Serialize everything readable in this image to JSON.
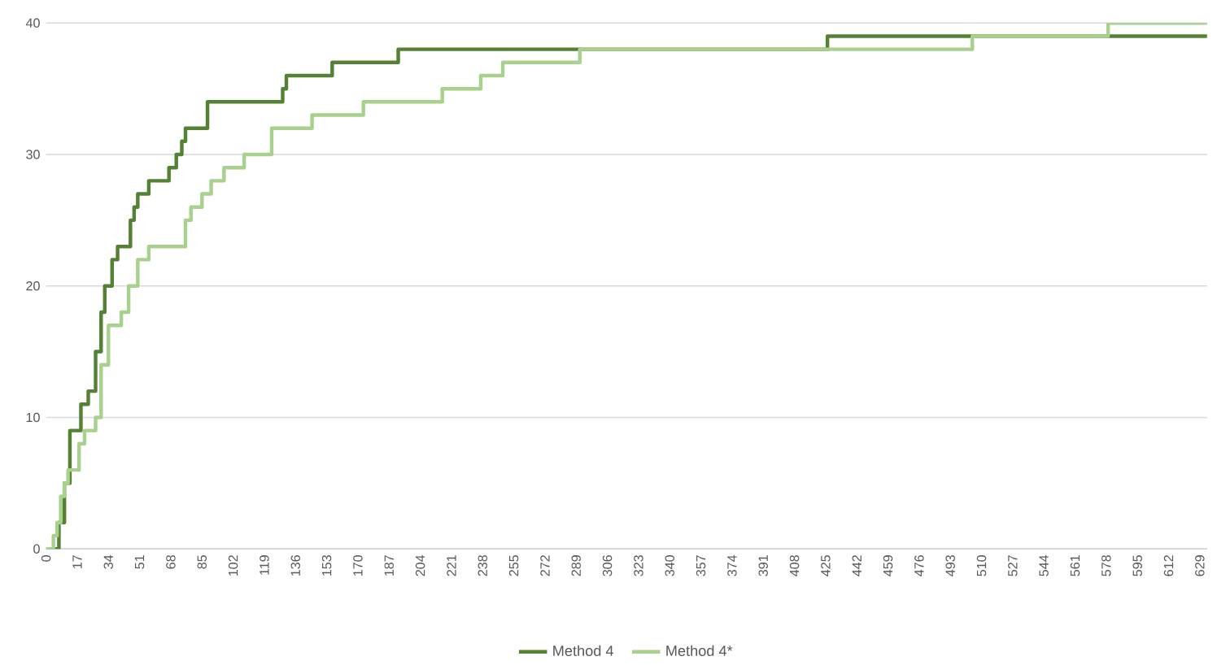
{
  "chart_data": {
    "type": "step",
    "xlim": [
      0,
      633
    ],
    "ylim": [
      0,
      40
    ],
    "xticks": [
      0,
      17,
      34,
      51,
      68,
      85,
      102,
      119,
      136,
      153,
      170,
      187,
      204,
      221,
      238,
      255,
      272,
      289,
      306,
      323,
      340,
      357,
      374,
      391,
      408,
      425,
      442,
      459,
      476,
      493,
      510,
      527,
      544,
      561,
      578,
      595,
      612,
      629
    ],
    "yticks": [
      0,
      10,
      20,
      30,
      40
    ],
    "grid": "y",
    "legend": "bottom",
    "marker": "none",
    "line_style": "solid",
    "series": [
      {
        "name": "Method 4",
        "color": "#548235",
        "x": [
          0,
          7,
          10,
          13,
          19,
          23,
          27,
          30,
          32,
          36,
          39,
          46,
          48,
          50,
          56,
          67,
          71,
          74,
          76,
          88,
          129,
          131,
          156,
          192,
          426,
          633
        ],
        "values": [
          0,
          2,
          5,
          9,
          11,
          12,
          15,
          18,
          20,
          22,
          23,
          25,
          26,
          27,
          28,
          29,
          30,
          31,
          32,
          34,
          35,
          36,
          37,
          38,
          39,
          39
        ]
      },
      {
        "name": "Method 4*",
        "color": "#a9d18e",
        "x": [
          0,
          4,
          6,
          8,
          10,
          12,
          18,
          21,
          27,
          30,
          34,
          41,
          45,
          50,
          56,
          76,
          79,
          85,
          90,
          97,
          108,
          123,
          145,
          173,
          216,
          237,
          249,
          291,
          505,
          579,
          633
        ],
        "values": [
          0,
          1,
          2,
          4,
          5,
          6,
          8,
          9,
          10,
          14,
          17,
          18,
          20,
          22,
          23,
          25,
          26,
          27,
          28,
          29,
          30,
          32,
          33,
          34,
          35,
          36,
          37,
          38,
          39,
          40,
          40
        ]
      }
    ]
  }
}
